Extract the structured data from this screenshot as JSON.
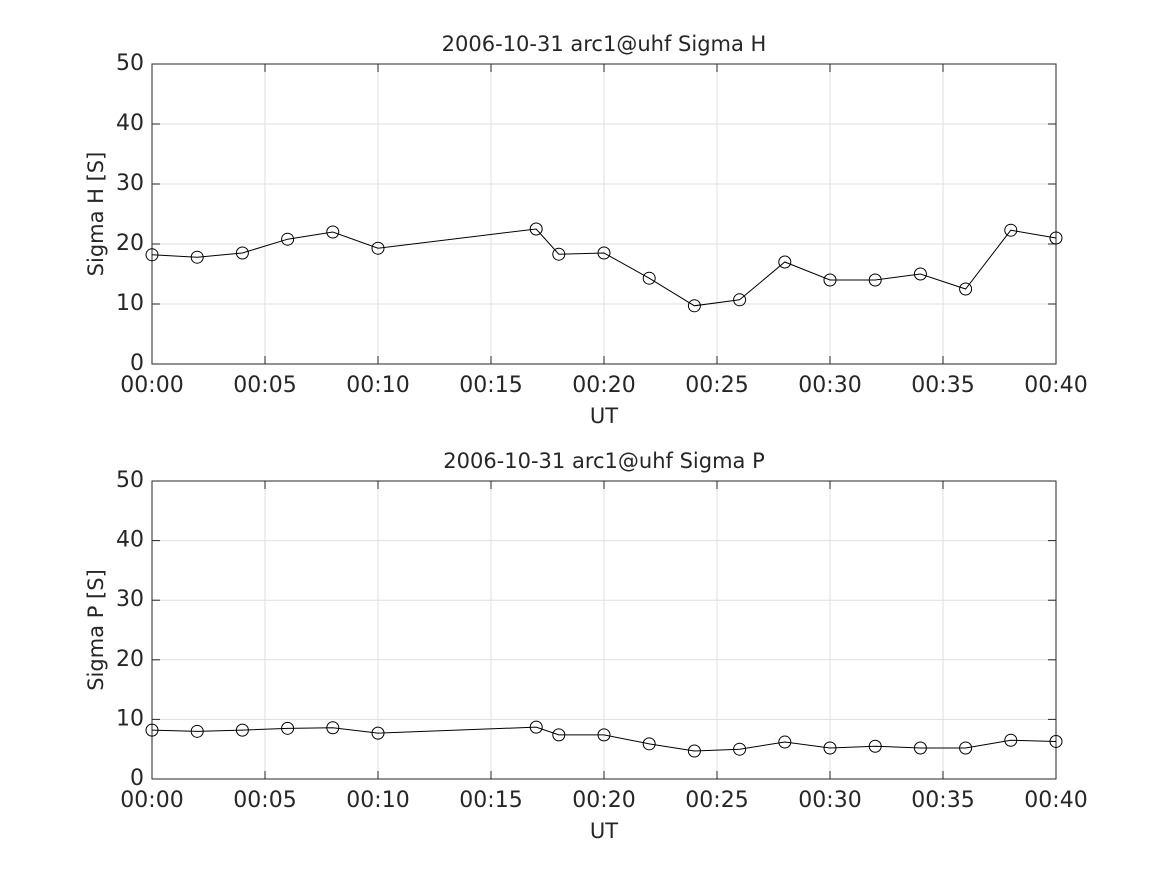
{
  "chart_data": [
    {
      "type": "line",
      "title": "2006-10-31  arc1@uhf Sigma H",
      "xlabel": "UT",
      "ylabel": "Sigma H [S]",
      "x": [
        0,
        2,
        4,
        6,
        8,
        10,
        17,
        18,
        20,
        22,
        24,
        26,
        28,
        30,
        32,
        34,
        36,
        38,
        40
      ],
      "values": [
        18.2,
        17.8,
        18.5,
        20.8,
        22.0,
        19.3,
        22.5,
        18.3,
        18.5,
        14.3,
        9.7,
        10.7,
        17.0,
        14.0,
        14.0,
        15.0,
        12.5,
        22.3,
        21.0
      ],
      "color": "#000000",
      "marker": "circle",
      "grid": true,
      "xlim": [
        0,
        40
      ],
      "ylim": [
        0,
        50
      ],
      "xticks": [
        {
          "value": 0,
          "label": "00:00"
        },
        {
          "value": 5,
          "label": "00:05"
        },
        {
          "value": 10,
          "label": "00:10"
        },
        {
          "value": 15,
          "label": "00:15"
        },
        {
          "value": 20,
          "label": "00:20"
        },
        {
          "value": 25,
          "label": "00:25"
        },
        {
          "value": 30,
          "label": "00:30"
        },
        {
          "value": 35,
          "label": "00:35"
        },
        {
          "value": 40,
          "label": "00:40"
        }
      ],
      "yticks": [
        0,
        10,
        20,
        30,
        40,
        50
      ]
    },
    {
      "type": "line",
      "title": "2006-10-31  arc1@uhf Sigma P",
      "xlabel": "UT",
      "ylabel": "Sigma P [S]",
      "x": [
        0,
        2,
        4,
        6,
        8,
        10,
        17,
        18,
        20,
        22,
        24,
        26,
        28,
        30,
        32,
        34,
        36,
        38,
        40
      ],
      "values": [
        8.2,
        8.0,
        8.2,
        8.5,
        8.6,
        7.7,
        8.7,
        7.4,
        7.4,
        5.9,
        4.7,
        5.0,
        6.2,
        5.2,
        5.5,
        5.2,
        5.2,
        6.5,
        6.3
      ],
      "color": "#000000",
      "marker": "circle",
      "grid": true,
      "xlim": [
        0,
        40
      ],
      "ylim": [
        0,
        50
      ],
      "xticks": [
        {
          "value": 0,
          "label": "00:00"
        },
        {
          "value": 5,
          "label": "00:05"
        },
        {
          "value": 10,
          "label": "00:10"
        },
        {
          "value": 15,
          "label": "00:15"
        },
        {
          "value": 20,
          "label": "00:20"
        },
        {
          "value": 25,
          "label": "00:25"
        },
        {
          "value": 30,
          "label": "00:30"
        },
        {
          "value": 35,
          "label": "00:35"
        },
        {
          "value": 40,
          "label": "00:40"
        }
      ],
      "yticks": [
        0,
        10,
        20,
        30,
        40,
        50
      ]
    }
  ]
}
